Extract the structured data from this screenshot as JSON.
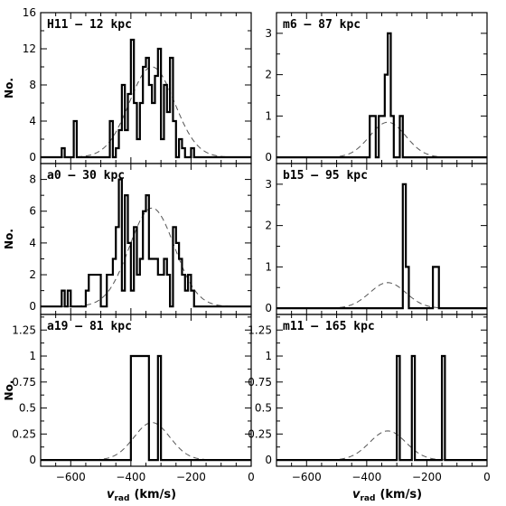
{
  "chart_data": [
    {
      "type": "bar",
      "title": "H11 – 12 kpc",
      "ylabel": "No.",
      "xlabel": "",
      "bins": [
        -630,
        -620,
        -610,
        -600,
        -590,
        -580,
        -570,
        -560,
        -550,
        -540,
        -530,
        -520,
        -510,
        -500,
        -490,
        -480,
        -470,
        -460,
        -450,
        -440,
        -430,
        -420,
        -410,
        -400,
        -390,
        -380,
        -370,
        -360,
        -350,
        -340,
        -330,
        -320,
        -310,
        -300,
        -290,
        -280,
        -270,
        -260,
        -250,
        -240,
        -230,
        -220,
        -210,
        -200,
        -190,
        -180,
        -170,
        -160
      ],
      "counts": [
        1,
        0,
        0,
        0,
        4,
        0,
        0,
        0,
        0,
        0,
        0,
        0,
        0,
        0,
        0,
        0,
        4,
        0,
        1,
        3,
        8,
        3,
        7,
        13,
        6,
        2,
        6,
        10,
        11,
        8,
        6,
        9,
        12,
        2,
        8,
        5,
        11,
        4,
        0,
        2,
        1,
        0,
        0,
        1,
        0,
        0,
        0
      ],
      "gaussian": {
        "mean": -330,
        "sigma": 75,
        "peak": 10
      },
      "xlim": [
        -700,
        0
      ],
      "ylim": [
        -0.7,
        16
      ],
      "xticks": [
        -600,
        -400,
        -200,
        0
      ],
      "yticks": [
        0,
        4,
        8,
        12,
        16
      ]
    },
    {
      "type": "bar",
      "title": "a0 – 30 kpc",
      "ylabel": "No.",
      "xlabel": "",
      "bins": [
        -630,
        -620,
        -610,
        -600,
        -590,
        -580,
        -570,
        -560,
        -550,
        -540,
        -530,
        -520,
        -510,
        -500,
        -490,
        -480,
        -470,
        -460,
        -450,
        -440,
        -430,
        -420,
        -410,
        -400,
        -390,
        -380,
        -370,
        -360,
        -350,
        -340,
        -330,
        -320,
        -310,
        -300,
        -290,
        -280,
        -270,
        -260,
        -250,
        -240,
        -230,
        -220,
        -210,
        -200,
        -190,
        -180,
        -170,
        -160
      ],
      "counts": [
        1,
        0,
        1,
        0,
        0,
        0,
        0,
        0,
        1,
        2,
        2,
        2,
        2,
        0,
        0,
        2,
        2,
        3,
        5,
        8,
        1,
        7,
        4,
        1,
        5,
        2,
        3,
        6,
        7,
        3,
        3,
        3,
        2,
        2,
        3,
        2,
        0,
        5,
        4,
        3,
        2,
        1,
        2,
        1,
        0,
        0,
        0
      ],
      "gaussian": {
        "mean": -330,
        "sigma": 75,
        "peak": 6.2
      },
      "xlim": [
        -700,
        0
      ],
      "ylim": [
        -0.5,
        9
      ],
      "xticks": [
        -600,
        -400,
        -200,
        0
      ],
      "yticks": [
        0,
        2,
        4,
        6,
        8
      ]
    },
    {
      "type": "bar",
      "title": "a19 – 81 kpc",
      "ylabel": "No.",
      "xlabel": "v_rad (km/s)",
      "bins": [
        -400,
        -340,
        -320,
        -310,
        -300,
        -290,
        -280
      ],
      "counts": [
        1,
        0,
        0,
        1,
        0,
        0
      ],
      "gaussian": {
        "mean": -330,
        "sigma": 60,
        "peak": 0.36
      },
      "xlim": [
        -700,
        0
      ],
      "ylim": [
        -0.06,
        1.4
      ],
      "xticks": [
        -600,
        -400,
        -200,
        0
      ],
      "yticks": [
        0,
        0.25,
        0.5,
        0.75,
        1,
        1.25
      ]
    },
    {
      "type": "bar",
      "title": "m6 – 87 kpc",
      "ylabel": "",
      "xlabel": "",
      "bins": [
        -390,
        -370,
        -360,
        -350,
        -340,
        -330,
        -320,
        -310,
        -300,
        -290,
        -280
      ],
      "counts": [
        1,
        0,
        1,
        1,
        2,
        3,
        1,
        0,
        0,
        1
      ],
      "gaussian": {
        "mean": -330,
        "sigma": 60,
        "peak": 0.85
      },
      "xlim": [
        -700,
        0
      ],
      "ylim": [
        -0.15,
        3.5
      ],
      "xticks": [
        -600,
        -400,
        -200,
        0
      ],
      "yticks": [
        0,
        1,
        2,
        3
      ]
    },
    {
      "type": "bar",
      "title": "b15 – 95 kpc",
      "ylabel": "",
      "xlabel": "",
      "bins": [
        -280,
        -270,
        -260,
        -250,
        -240,
        -230,
        -220,
        -210,
        -200,
        -190,
        -180,
        -170,
        -160,
        -150
      ],
      "counts": [
        3,
        1,
        0,
        0,
        0,
        0,
        0,
        0,
        0,
        0,
        1,
        1,
        0
      ],
      "gaussian": {
        "mean": -330,
        "sigma": 60,
        "peak": 0.62
      },
      "xlim": [
        -700,
        0
      ],
      "ylim": [
        -0.15,
        3.5
      ],
      "xticks": [
        -600,
        -400,
        -200,
        0
      ],
      "yticks": [
        0,
        1,
        2,
        3
      ]
    },
    {
      "type": "bar",
      "title": "m11 – 165 kpc",
      "ylabel": "",
      "xlabel": "v_rad (km/s)",
      "bins": [
        -300,
        -290,
        -250,
        -240,
        -150,
        -140
      ],
      "counts": [
        1,
        0,
        1,
        0,
        1
      ],
      "gaussian": {
        "mean": -330,
        "sigma": 60,
        "peak": 0.28
      },
      "xlim": [
        -700,
        0
      ],
      "ylim": [
        -0.06,
        1.4
      ],
      "xticks": [
        -600,
        -400,
        -200,
        0
      ],
      "yticks": [
        0,
        0.25,
        0.5,
        0.75,
        1,
        1.25
      ]
    }
  ],
  "axis_label_x_main": "v",
  "axis_label_x_sub": "rad",
  "axis_label_x_unit": "(km/s)",
  "axis_label_y": "No."
}
